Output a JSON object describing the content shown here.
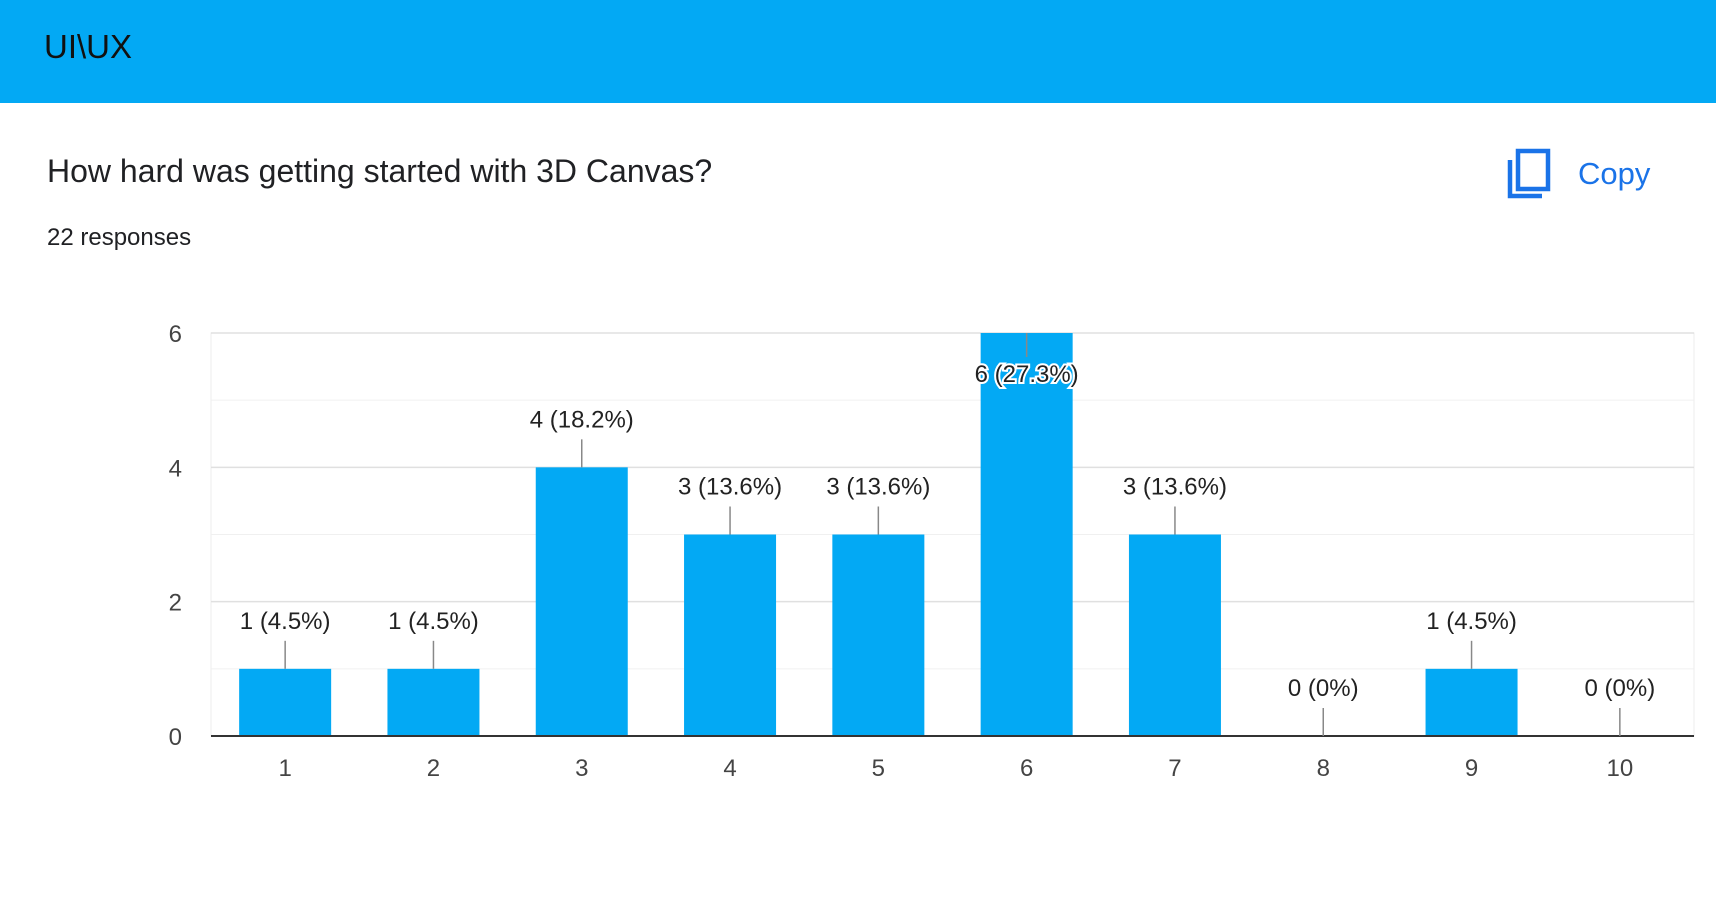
{
  "header": {
    "title": "UI\\UX"
  },
  "question": {
    "title": "How hard was getting started with 3D Canvas?",
    "responses": "22 responses",
    "copy_label": "Copy"
  },
  "colors": {
    "header_bg": "#03a9f4",
    "bar": "#03a9f4",
    "accent": "#1a73e8"
  },
  "icons": {
    "copy": "copy-icon"
  },
  "chart_data": {
    "type": "bar",
    "title": "How hard was getting started with 3D Canvas?",
    "categories": [
      "1",
      "2",
      "3",
      "4",
      "5",
      "6",
      "7",
      "8",
      "9",
      "10"
    ],
    "values": [
      1,
      1,
      4,
      3,
      3,
      6,
      3,
      0,
      1,
      0
    ],
    "labels": [
      "1 (4.5%)",
      "1 (4.5%)",
      "4 (18.2%)",
      "3 (13.6%)",
      "3 (13.6%)",
      "6 (27.3%)",
      "3 (13.6%)",
      "0 (0%)",
      "1 (4.5%)",
      "0 (0%)"
    ],
    "yticks": [
      0,
      2,
      4,
      6
    ],
    "ylim": [
      0,
      6
    ],
    "xlabel": "",
    "ylabel": "",
    "grid": true
  }
}
